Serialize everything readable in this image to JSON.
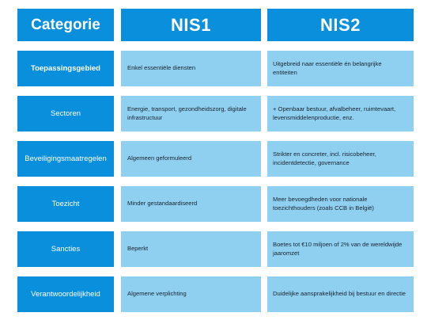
{
  "header": {
    "col1": "Categorie",
    "col2": "NIS1",
    "col3": "NIS2"
  },
  "rows": [
    {
      "category": "Toepassingsgebied",
      "nis1": "Enkel essentiële diensten",
      "nis2": "Uitgebreid naar essentiële én belangrijke entiteiten"
    },
    {
      "category": "Sectoren",
      "nis1": "Energie, transport, gezondheidszorg, digitale infrastructuur",
      "nis2": "+ Openbaar bestuur, afvalbeheer, ruimtevaart, levensmiddelenproductie, enz."
    },
    {
      "category": "Beveiligingsmaatregelen",
      "nis1": "Algemeen geformuleerd",
      "nis2": "Strikter en concreter, incl. risicobeheer, incidentdetectie, governance"
    },
    {
      "category": "Toezicht",
      "nis1": "Minder gestandaardiseerd",
      "nis2": "Meer bevoegdheden voor nationale toezichthouders (zoals CCB in België)"
    },
    {
      "category": "Sancties",
      "nis1": "Beperkt",
      "nis2": "Boetes tot €10 miljoen of 2% van de wereldwijde jaaromzet"
    },
    {
      "category": "Verantwoordelijkheid",
      "nis1": "Algemene verplichting",
      "nis2": "Duidelijke aansprakelijkheid bij bestuur en directie"
    }
  ],
  "colors": {
    "header_bg": "#0a8fdc",
    "cell_bg": "#8fd0f1",
    "header_text": "#ffffff",
    "cell_text": "#1a2330"
  }
}
